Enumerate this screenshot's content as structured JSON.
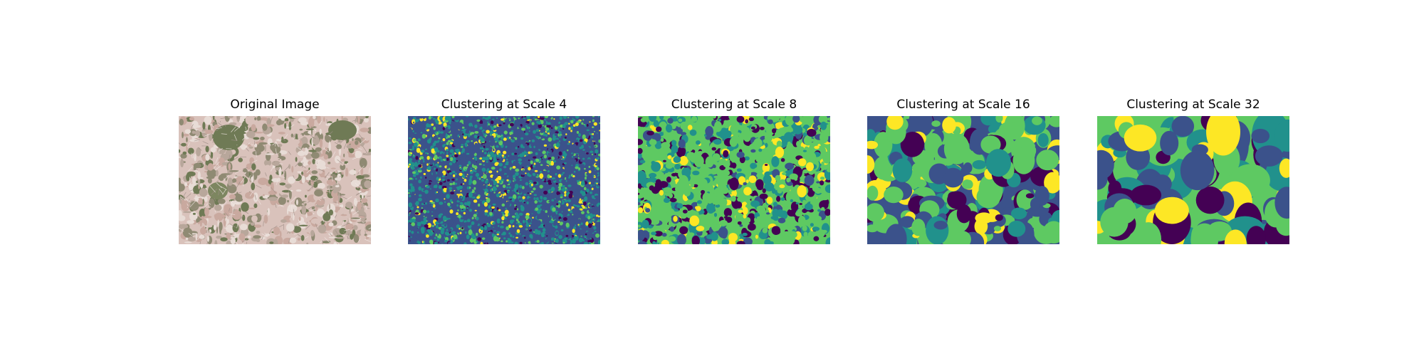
{
  "panels": [
    {
      "title": "Original Image",
      "kind": "photo"
    },
    {
      "title": "Clustering at Scale 4",
      "kind": "cluster",
      "scale": 4
    },
    {
      "title": "Clustering at Scale 8",
      "kind": "cluster",
      "scale": 8
    },
    {
      "title": "Clustering at Scale 16",
      "kind": "cluster",
      "scale": 16
    },
    {
      "title": "Clustering at Scale 32",
      "kind": "cluster",
      "scale": 32
    }
  ],
  "colors": {
    "cluster_palette": [
      "#440154",
      "#3b528b",
      "#21918c",
      "#5ec962",
      "#fde725"
    ],
    "photo_palette": [
      "#d9c2bb",
      "#c9a99f",
      "#b8a79b",
      "#8f8a73",
      "#6f7a55",
      "#e8dcd6"
    ]
  }
}
